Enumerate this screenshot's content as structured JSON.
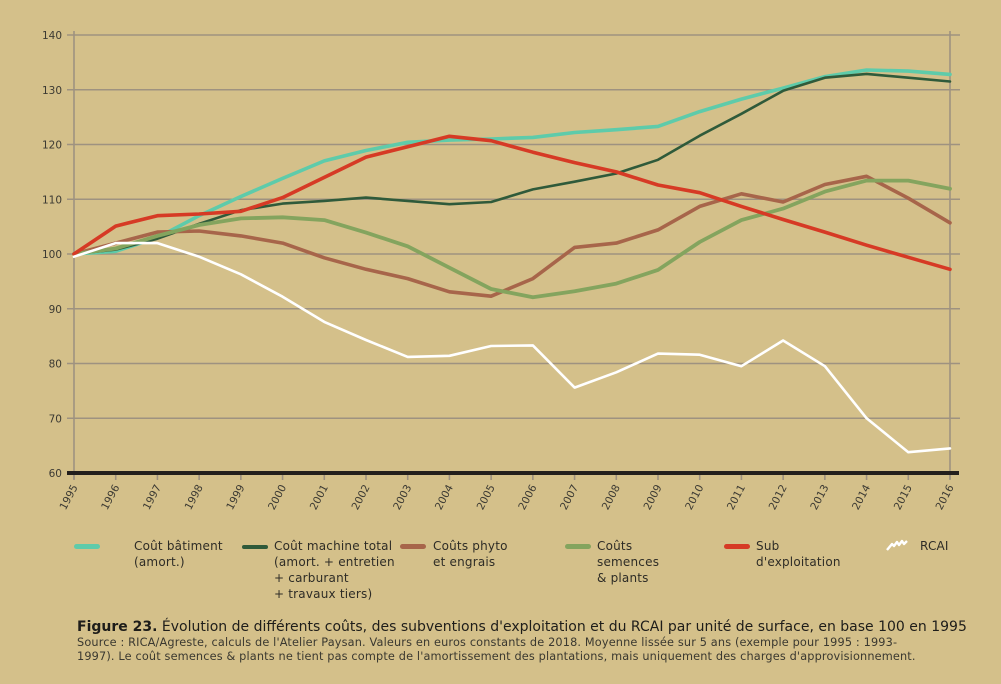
{
  "chart_data": {
    "type": "line",
    "title": "Évolution de différents coûts, des subventions d'exploitation et du RCAI par unité de surface, en base 100 en 1995",
    "xlabel": "",
    "ylabel": "",
    "ylim": [
      60,
      140
    ],
    "yticks": [
      60,
      70,
      80,
      90,
      100,
      110,
      120,
      130,
      140
    ],
    "grid": true,
    "legend_position": "bottom",
    "x": [
      "1995",
      "1996",
      "1997",
      "1998",
      "1999",
      "2000",
      "2001",
      "2002",
      "2003",
      "2004",
      "2005",
      "2006",
      "2007",
      "2008",
      "2009",
      "2010",
      "2011",
      "2012",
      "2013",
      "2014",
      "2015",
      "2016"
    ],
    "series": [
      {
        "name": "Coût bâtiment (amort.)",
        "legend_text": "Coût bâtiment\n(amort.)",
        "color": "#5ECBAA",
        "values": [
          100,
          100.5,
          103,
          107,
          110.5,
          113.8,
          117,
          118.9,
          120.4,
          120.8,
          121,
          121.3,
          122.2,
          122.7,
          123.3,
          126,
          128.3,
          130.3,
          132.4,
          133.6,
          133.4,
          132.8
        ]
      },
      {
        "name": "Coût machine total (amort. + entretien + carburant + travaux tiers)",
        "legend_text": "Coût machine total\n(amort. + entretien\n+ carburant\n+ travaux tiers)",
        "color": "#2F5A3A",
        "values": [
          100,
          100.8,
          102.8,
          105.5,
          108,
          109.2,
          109.7,
          110.3,
          109.7,
          109.1,
          109.5,
          111.8,
          113.2,
          114.7,
          117.2,
          121.6,
          125.6,
          129.8,
          132.2,
          132.9,
          132.2,
          131.5
        ]
      },
      {
        "name": "Coûts phyto et engrais",
        "legend_text": "Coûts phyto\net engrais",
        "color": "#A7654A",
        "values": [
          100,
          102,
          104,
          104.2,
          103.3,
          102,
          99.3,
          97.2,
          95.5,
          93.1,
          92.3,
          95.5,
          101.2,
          102,
          104.4,
          108.7,
          111,
          109.5,
          112.7,
          114.2,
          110.2,
          105.7
        ]
      },
      {
        "name": "Coûts semences & plants",
        "legend_text": "Coûts\nsemences\n& plants",
        "color": "#84A45E",
        "values": [
          100,
          101,
          103.3,
          105.3,
          106.5,
          106.7,
          106.2,
          103.9,
          101.4,
          97.5,
          93.6,
          92.1,
          93.2,
          94.6,
          97.1,
          102.2,
          106.2,
          108.3,
          111.4,
          113.4,
          113.4,
          111.9
        ]
      },
      {
        "name": "Sub d'exploitation",
        "legend_text": "Sub\nd'exploitation",
        "color": "#D63A25",
        "values": [
          100,
          105.1,
          107,
          107.3,
          107.8,
          110.3,
          114,
          117.7,
          119.6,
          121.5,
          120.7,
          118.6,
          116.7,
          115,
          112.6,
          111.2,
          108.7,
          106.3,
          104,
          101.6,
          99.4,
          97.2
        ]
      },
      {
        "name": "RCAI",
        "legend_text": "RCAI",
        "color": "#FFFFFF",
        "values": [
          99.5,
          102,
          102,
          99.5,
          96.3,
          92.2,
          87.6,
          84.3,
          81.2,
          81.4,
          83.2,
          83.3,
          75.6,
          78.4,
          81.8,
          81.6,
          79.5,
          84.2,
          79.5,
          70,
          63.8,
          64.5
        ]
      }
    ]
  },
  "caption": {
    "figure_label": "Figure 23.",
    "title": " Évolution de différents coûts, des subventions d'exploitation et du RCAI par unité de surface, en base 100 en 1995",
    "source_line1": "Source : RICA/Agreste, calculs de l'Atelier Paysan. Valeurs en euros constants de 2018. Moyenne lissée sur 5 ans (exemple pour 1995 : 1993-",
    "source_line2": "1997). Le coût semences & plants ne tient pas compte de l'amortissement des plantations, mais uniquement des charges d'approvisionnement."
  },
  "style": {
    "background": "#D4C08A",
    "gridline": "#9E9280",
    "baseline": "#231F1C",
    "text": "#3C3A33"
  }
}
